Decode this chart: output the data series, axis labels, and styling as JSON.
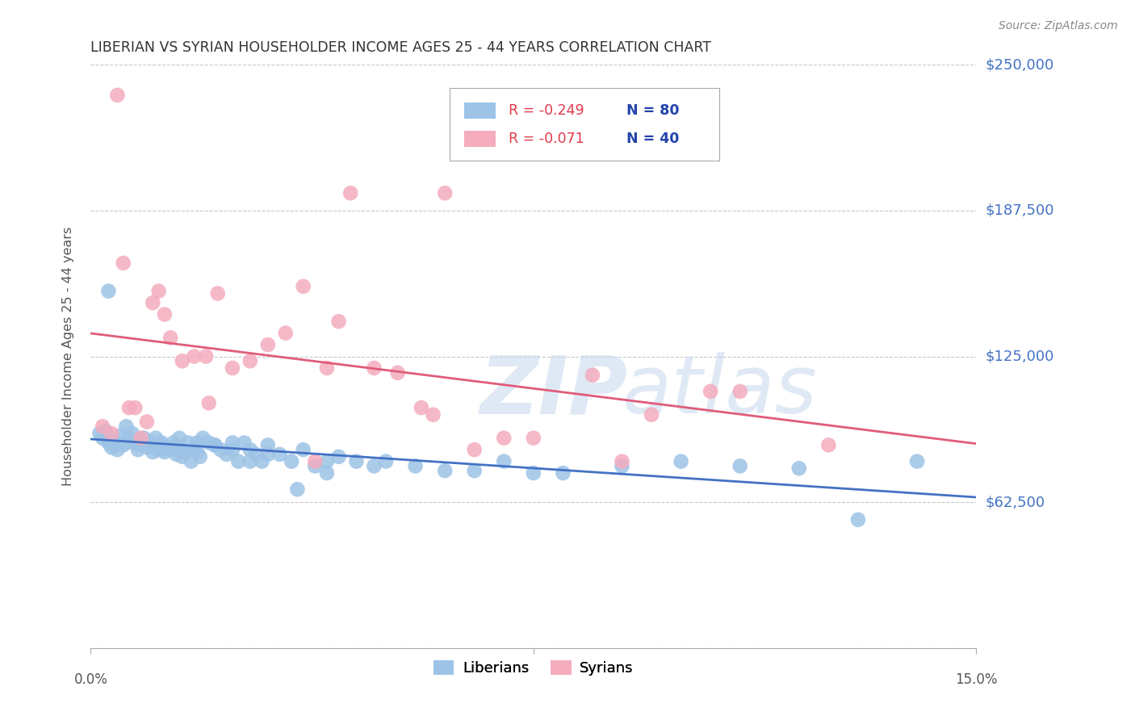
{
  "title": "LIBERIAN VS SYRIAN HOUSEHOLDER INCOME AGES 25 - 44 YEARS CORRELATION CHART",
  "source": "Source: ZipAtlas.com",
  "ylabel": "Householder Income Ages 25 - 44 years",
  "xlim": [
    0.0,
    15.0
  ],
  "ylim": [
    0,
    250000
  ],
  "yticks": [
    0,
    62500,
    125000,
    187500,
    250000
  ],
  "ytick_labels": [
    "",
    "$62,500",
    "$125,000",
    "$187,500",
    "$250,000"
  ],
  "background_color": "#ffffff",
  "grid_color": "#c8c8c8",
  "title_color": "#333333",
  "right_label_color": "#4472c4",
  "liberian_color": "#9dc3e6",
  "syrian_color": "#f4acbe",
  "liberian_line_color": "#4472c4",
  "syrian_line_color": "#e05c7a",
  "legend_R1": "R = -0.249",
  "legend_N1": "N = 80",
  "legend_R2": "R = -0.071",
  "legend_N2": "N = 40",
  "watermark_zip": "ZIP",
  "watermark_atlas": "atlas",
  "liberian_x": [
    0.15,
    0.2,
    0.25,
    0.3,
    0.35,
    0.4,
    0.45,
    0.5,
    0.55,
    0.6,
    0.65,
    0.7,
    0.75,
    0.8,
    0.85,
    0.9,
    0.95,
    1.0,
    1.05,
    1.1,
    1.15,
    1.2,
    1.25,
    1.3,
    1.35,
    1.4,
    1.45,
    1.5,
    1.55,
    1.6,
    1.65,
    1.7,
    1.75,
    1.8,
    1.85,
    1.9,
    2.0,
    2.1,
    2.2,
    2.3,
    2.4,
    2.5,
    2.6,
    2.7,
    2.8,
    2.9,
    3.0,
    3.2,
    3.4,
    3.6,
    3.8,
    4.0,
    4.2,
    4.5,
    4.8,
    5.0,
    5.5,
    6.0,
    6.5,
    7.0,
    7.5,
    8.0,
    9.0,
    10.0,
    11.0,
    12.0,
    13.0,
    14.0,
    0.3,
    0.6,
    0.9,
    1.2,
    1.5,
    1.8,
    2.1,
    2.4,
    2.7,
    3.0,
    3.5,
    4.0
  ],
  "liberian_y": [
    92000,
    90000,
    93000,
    88000,
    86000,
    89000,
    85000,
    91000,
    87000,
    88000,
    90000,
    92000,
    88000,
    85000,
    87000,
    90000,
    86000,
    88000,
    84000,
    90000,
    85000,
    88000,
    84000,
    86000,
    85000,
    88000,
    83000,
    85000,
    82000,
    84000,
    88000,
    80000,
    85000,
    84000,
    82000,
    90000,
    88000,
    87000,
    85000,
    83000,
    88000,
    80000,
    88000,
    85000,
    83000,
    80000,
    87000,
    83000,
    80000,
    85000,
    78000,
    80000,
    82000,
    80000,
    78000,
    80000,
    78000,
    76000,
    76000,
    80000,
    75000,
    75000,
    78000,
    80000,
    78000,
    77000,
    55000,
    80000,
    153000,
    95000,
    88000,
    87000,
    90000,
    88000,
    87000,
    85000,
    80000,
    83000,
    68000,
    75000
  ],
  "syrian_x": [
    0.2,
    0.35,
    0.45,
    0.55,
    0.65,
    0.75,
    0.85,
    0.95,
    1.05,
    1.15,
    1.25,
    1.35,
    1.55,
    1.75,
    1.95,
    2.15,
    2.4,
    2.7,
    3.0,
    3.3,
    3.6,
    4.0,
    4.4,
    4.8,
    5.2,
    5.6,
    6.0,
    6.5,
    7.5,
    8.5,
    9.5,
    11.0,
    12.5,
    4.2,
    5.8,
    7.0,
    9.0,
    10.5,
    2.0,
    3.8
  ],
  "syrian_y": [
    95000,
    92000,
    237000,
    165000,
    103000,
    103000,
    90000,
    97000,
    148000,
    153000,
    143000,
    133000,
    123000,
    125000,
    125000,
    152000,
    120000,
    123000,
    130000,
    135000,
    155000,
    120000,
    195000,
    120000,
    118000,
    103000,
    195000,
    85000,
    90000,
    117000,
    100000,
    110000,
    87000,
    140000,
    100000,
    90000,
    80000,
    110000,
    105000,
    80000
  ]
}
